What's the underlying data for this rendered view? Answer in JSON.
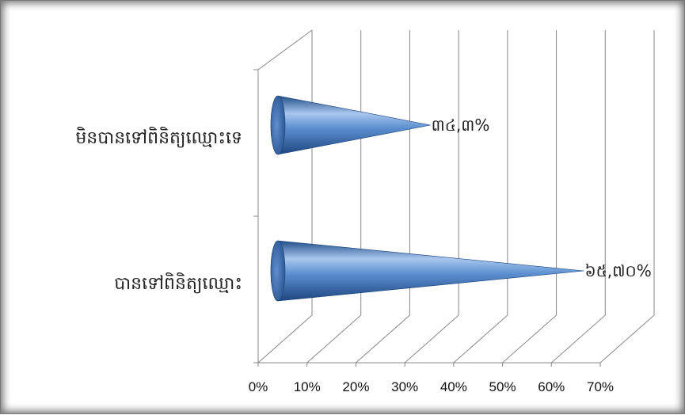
{
  "chart_data": {
    "type": "bar",
    "style": "3d-cone",
    "orientation": "horizontal",
    "title": "",
    "xlabel": "",
    "ylabel": "",
    "xlim": [
      0,
      70
    ],
    "x_ticks": [
      "0%",
      "10%",
      "20%",
      "30%",
      "40%",
      "50%",
      "60%",
      "70%"
    ],
    "grid": true,
    "legend": "none",
    "categories": [
      "មិនបានទៅពិនិត្យឈ្មោះទេ",
      "បានទៅពិនិត្យឈ្មោះ"
    ],
    "values": [
      34.3,
      65.7
    ],
    "data_labels": [
      "៣៤,៣%",
      "៦៥,៧០%"
    ],
    "series_color": "#3f72b4"
  }
}
